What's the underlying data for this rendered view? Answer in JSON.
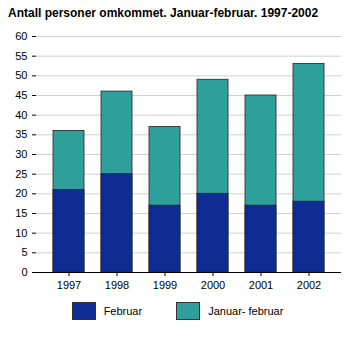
{
  "chart_data": {
    "type": "bar",
    "title": "Antall personer omkommet. Januar-februar. 1997-2002",
    "categories": [
      "1997",
      "1998",
      "1999",
      "2000",
      "2001",
      "2002"
    ],
    "series": [
      {
        "name": "Februar",
        "color": "#0f2b94",
        "values": [
          21,
          25,
          17,
          20,
          17,
          18
        ]
      },
      {
        "name": "Januar- februar",
        "color": "#2f9f9c",
        "values": [
          36,
          46,
          37,
          49,
          45,
          53
        ]
      }
    ],
    "stacked": false,
    "ylim": [
      0,
      60
    ],
    "yticks": [
      0,
      5,
      10,
      15,
      20,
      25,
      30,
      35,
      40,
      45,
      50,
      55,
      60
    ],
    "grid": true,
    "legend": "bottom"
  }
}
